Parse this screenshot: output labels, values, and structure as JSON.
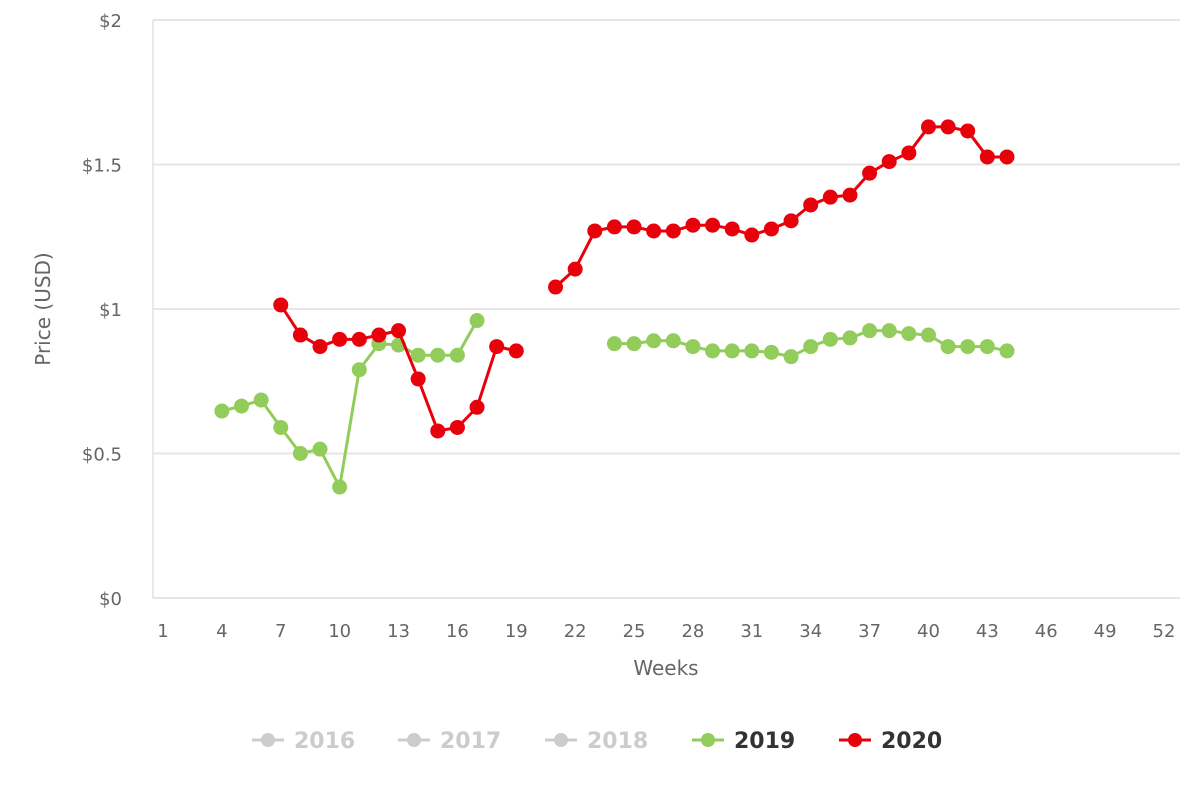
{
  "chart_data": {
    "type": "line",
    "title": "",
    "xlabel": "Weeks",
    "ylabel": "Price (USD)",
    "xlim": [
      1,
      52
    ],
    "ylim": [
      0,
      2
    ],
    "x_ticks": [
      1,
      4,
      7,
      10,
      13,
      16,
      19,
      22,
      25,
      28,
      31,
      34,
      37,
      40,
      43,
      46,
      49,
      52
    ],
    "y_ticks": [
      0,
      0.5,
      1,
      1.5,
      2
    ],
    "y_tick_labels": [
      "$0",
      "$0.5",
      "$1",
      "$1.5",
      "$2"
    ],
    "grid": "horizontal",
    "legend_position": "bottom",
    "series": [
      {
        "name": "2016",
        "color": "#cccccc",
        "hidden": true,
        "x": [],
        "y": []
      },
      {
        "name": "2017",
        "color": "#cccccc",
        "hidden": true,
        "x": [],
        "y": []
      },
      {
        "name": "2018",
        "color": "#cccccc",
        "hidden": true,
        "x": [],
        "y": []
      },
      {
        "name": "2019",
        "color": "#92cc5a",
        "hidden": false,
        "x": [
          4,
          5,
          6,
          7,
          8,
          9,
          10,
          11,
          12,
          13,
          14,
          15,
          16,
          17,
          18,
          24,
          25,
          26,
          27,
          28,
          29,
          30,
          31,
          32,
          33,
          34,
          35,
          36,
          37,
          38,
          39,
          40,
          41,
          42,
          43,
          44
        ],
        "y": [
          0.647,
          0.664,
          0.685,
          0.59,
          0.5,
          0.515,
          0.384,
          0.79,
          0.88,
          0.875,
          0.84,
          0.84,
          0.84,
          0.96,
          null,
          0.88,
          0.88,
          0.89,
          0.89,
          0.87,
          0.855,
          0.855,
          0.855,
          0.85,
          0.835,
          0.87,
          0.895,
          0.9,
          0.925,
          0.925,
          0.915,
          0.91,
          0.87,
          0.87,
          0.87,
          0.855
        ]
      },
      {
        "name": "2020",
        "color": "#e8000b",
        "hidden": false,
        "x": [
          7,
          8,
          9,
          10,
          11,
          12,
          13,
          14,
          15,
          16,
          17,
          18,
          19,
          20,
          21,
          22,
          23,
          24,
          25,
          26,
          27,
          28,
          29,
          30,
          31,
          32,
          33,
          34,
          35,
          36,
          37,
          38,
          39,
          40,
          41,
          42,
          43,
          44
        ],
        "y": [
          1.014,
          0.91,
          0.87,
          0.895,
          0.895,
          0.91,
          0.925,
          0.758,
          0.578,
          0.59,
          0.66,
          0.87,
          0.855,
          null,
          1.076,
          1.138,
          1.27,
          1.284,
          1.284,
          1.27,
          1.27,
          1.29,
          1.29,
          1.277,
          1.256,
          1.277,
          1.305,
          1.36,
          1.387,
          1.394,
          1.47,
          1.51,
          1.54,
          1.63,
          1.63,
          1.616,
          1.526,
          1.526
        ]
      }
    ]
  }
}
